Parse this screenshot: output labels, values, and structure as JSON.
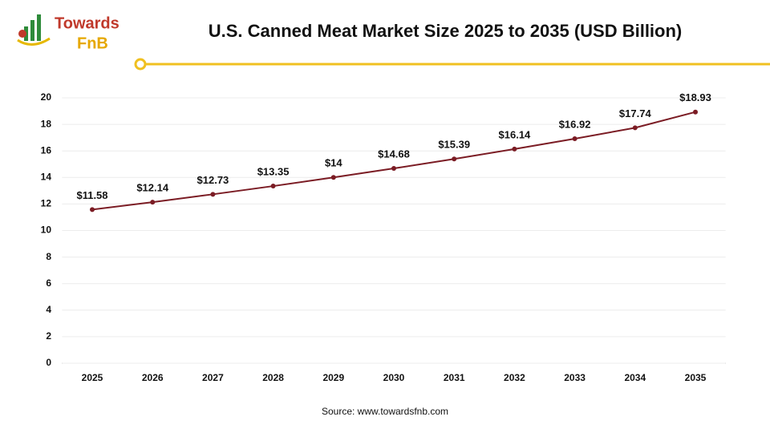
{
  "logo": {
    "line1": "Towards",
    "line2": "FnB"
  },
  "source": "Source: www.towardsfnb.com",
  "chart_data": {
    "type": "line",
    "title": "U.S. Canned Meat Market Size 2025 to 2035 (USD Billion)",
    "categories": [
      "2025",
      "2026",
      "2027",
      "2028",
      "2029",
      "2030",
      "2031",
      "2032",
      "2033",
      "2034",
      "2035"
    ],
    "values": [
      11.58,
      12.14,
      12.73,
      13.35,
      14,
      14.68,
      15.39,
      16.14,
      16.92,
      17.74,
      18.93
    ],
    "value_labels": [
      "$11.58",
      "$12.14",
      "$12.73",
      "$13.35",
      "$14",
      "$14.68",
      "$15.39",
      "$16.14",
      "$16.92",
      "$17.74",
      "$18.93"
    ],
    "color": "#7b1c24",
    "ylim": [
      0,
      20
    ],
    "yticks": [
      0,
      2,
      4,
      6,
      8,
      10,
      12,
      14,
      16,
      18,
      20
    ],
    "grid": true
  }
}
